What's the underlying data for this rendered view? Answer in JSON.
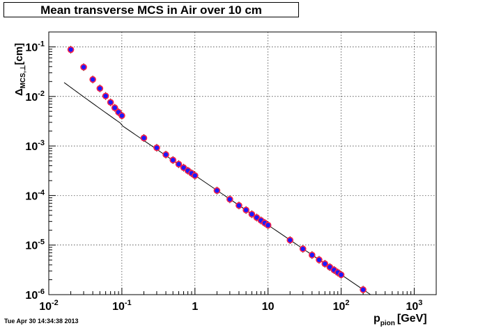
{
  "footer": "Tue Apr 30 14:34:38 2013",
  "chart_data": {
    "type": "scatter",
    "title": "Mean transverse MCS in Air over 10 cm",
    "xlabel": {
      "main": "p",
      "sub": "pion",
      "unit": "[GeV]"
    },
    "ylabel": {
      "main": "Δ",
      "sub": "MCS,⊥",
      "unit": "[cm]"
    },
    "xscale": "log",
    "yscale": "log",
    "xlim": [
      0.01,
      2000
    ],
    "ylim": [
      1e-06,
      0.2
    ],
    "grid": true,
    "x_ticks": [
      {
        "v": 0.01,
        "base": "10",
        "exp": "-2"
      },
      {
        "v": 0.1,
        "base": "10",
        "exp": "-1"
      },
      {
        "v": 1,
        "base": "1",
        "exp": ""
      },
      {
        "v": 10,
        "base": "10",
        "exp": ""
      },
      {
        "v": 100,
        "base": "10",
        "exp": "2"
      },
      {
        "v": 1000,
        "base": "10",
        "exp": "3"
      }
    ],
    "y_ticks": [
      {
        "v": 1e-06,
        "base": "10",
        "exp": "-6"
      },
      {
        "v": 1e-05,
        "base": "10",
        "exp": "-5"
      },
      {
        "v": 0.0001,
        "base": "10",
        "exp": "-4"
      },
      {
        "v": 0.001,
        "base": "10",
        "exp": "-3"
      },
      {
        "v": 0.01,
        "base": "10",
        "exp": "-2"
      },
      {
        "v": 0.1,
        "base": "10",
        "exp": "-1"
      }
    ],
    "series": [
      {
        "marker": "circle",
        "fill_color": "#1a1aff",
        "edge_color": "#ff2244",
        "x": [
          0.02,
          0.03,
          0.04,
          0.05,
          0.06,
          0.07,
          0.08,
          0.09,
          0.1,
          0.2,
          0.3,
          0.4,
          0.5,
          0.6,
          0.7,
          0.8,
          0.9,
          1,
          2,
          3,
          4,
          5,
          6,
          7,
          8,
          9,
          10,
          20,
          30,
          40,
          50,
          60,
          70,
          80,
          90,
          100,
          200
        ],
        "y": [
          0.088,
          0.039,
          0.022,
          0.0145,
          0.0102,
          0.0076,
          0.0059,
          0.0048,
          0.0041,
          0.00145,
          0.00092,
          0.00067,
          0.00052,
          0.00043,
          0.000365,
          0.000318,
          0.000282,
          0.000253,
          0.000126,
          8.4e-05,
          6.3e-05,
          5.1e-05,
          4.2e-05,
          3.6e-05,
          3.15e-05,
          2.8e-05,
          2.52e-05,
          1.26e-05,
          8.4e-06,
          6.3e-06,
          5.05e-06,
          4.2e-06,
          3.6e-06,
          3.15e-06,
          2.8e-06,
          2.52e-06,
          1.26e-06
        ]
      }
    ],
    "fit_line": {
      "x_range": [
        0.0162,
        250
      ],
      "y_at_1": 0.000253,
      "power": -1.0,
      "low_p_steepening": 0.0
    }
  }
}
